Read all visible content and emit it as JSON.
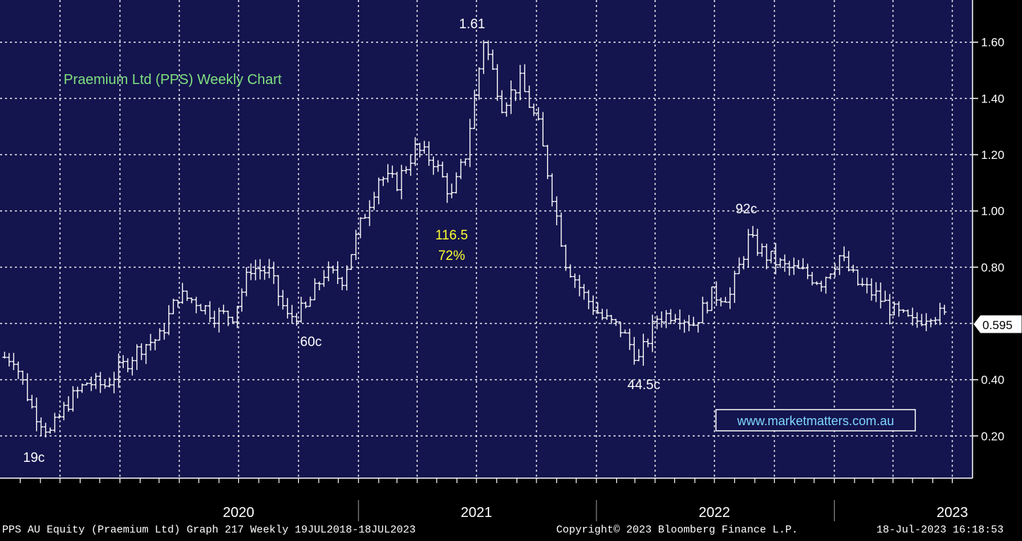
{
  "colors": {
    "plot_background": "#14144e",
    "axis_background": "#000000",
    "grid": "#ffffff",
    "bars": "#ffffff",
    "title_text": "#7fe07f",
    "annotation_text": "#ffffff",
    "highlight_text": "#ffff33",
    "link_text": "#7fd7ff"
  },
  "chart_data": {
    "type": "line",
    "subtype": "weekly OHLC bar chart",
    "title": "Praemium Ltd (PPS) Weekly Chart",
    "ylim": [
      0.05,
      1.75
    ],
    "y_ticks": [
      "0.20",
      "0.40",
      "0.60",
      "0.80",
      "1.00",
      "1.20",
      "1.40",
      "1.60"
    ],
    "x_tick_labels": [
      "2020",
      "2021",
      "2022",
      "2023"
    ],
    "grid": true,
    "last_price_label": "0.595",
    "series": [
      {
        "x": [
          "2019-07-22",
          "2019-08-19",
          "2019-09-16",
          "2019-10-14",
          "2019-11-11",
          "2019-12-09",
          "2020-01-06",
          "2020-02-03",
          "2020-03-02",
          "2020-03-30",
          "2020-04-27",
          "2020-05-25",
          "2020-06-22",
          "2020-07-20",
          "2020-08-17",
          "2020-09-14",
          "2020-10-12",
          "2020-11-09",
          "2020-12-07",
          "2021-01-04",
          "2021-02-01",
          "2021-03-01",
          "2021-03-29",
          "2021-04-26",
          "2021-05-24",
          "2021-06-14",
          "2021-07-12",
          "2021-08-09",
          "2021-09-06",
          "2021-10-04",
          "2021-10-18",
          "2021-11-15",
          "2021-12-13",
          "2022-01-10",
          "2022-02-07",
          "2022-03-07",
          "2022-04-04",
          "2022-05-02",
          "2022-05-30",
          "2022-06-27",
          "2022-07-25",
          "2022-08-22",
          "2022-09-19",
          "2022-10-17",
          "2022-11-14",
          "2022-12-12",
          "2023-01-09",
          "2023-02-06",
          "2023-03-06",
          "2023-04-03",
          "2023-05-01",
          "2023-05-29",
          "2023-06-26",
          "2023-07-17"
        ],
        "values": [
          0.48,
          0.3,
          0.21,
          0.32,
          0.39,
          0.38,
          0.45,
          0.52,
          0.55,
          0.7,
          0.68,
          0.63,
          0.63,
          0.8,
          0.78,
          0.62,
          0.65,
          0.78,
          0.76,
          0.95,
          1.12,
          1.1,
          1.22,
          1.18,
          1.05,
          1.2,
          1.61,
          1.38,
          1.46,
          1.3,
          1.14,
          0.82,
          0.7,
          0.62,
          0.58,
          0.47,
          0.62,
          0.64,
          0.6,
          0.7,
          0.7,
          0.9,
          0.84,
          0.8,
          0.78,
          0.75,
          0.84,
          0.74,
          0.7,
          0.64,
          0.6,
          0.64,
          0.62,
          0.595
        ]
      }
    ],
    "annotations": [
      "1.61",
      "116.5",
      "72%",
      "92c",
      "60c",
      "44.5c",
      "19c"
    ],
    "link": "www.marketmatters.com.au"
  },
  "footer": {
    "left": "PPS AU Equity (Praemium Ltd) Graph 217  Weekly 19JUL2018-18JUL2023",
    "center": "Copyright© 2023 Bloomberg Finance L.P.",
    "right": "18-Jul-2023 16:18:53"
  }
}
